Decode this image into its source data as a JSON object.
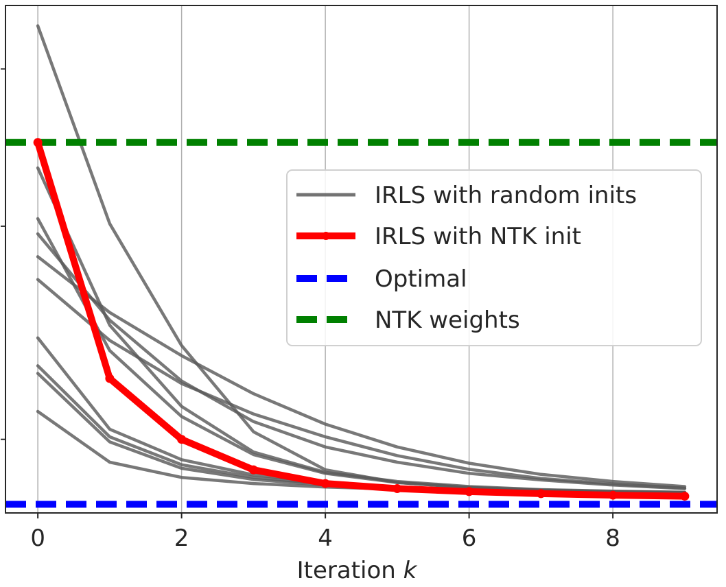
{
  "chart_data": {
    "type": "line",
    "title": "",
    "xlabel": "Iteration",
    "xlabel_var": "k",
    "ylabel": "",
    "xlim": [
      -0.45,
      9.45
    ],
    "ylim": [
      0,
      1
    ],
    "xticks": [
      0,
      2,
      4,
      6,
      8
    ],
    "xtick_labels": [
      "0",
      "2",
      "4",
      "6",
      "8"
    ],
    "yticks": [
      0.145,
      0.565,
      0.875
    ],
    "grid": "x",
    "legend_position": "center-right",
    "legend": [
      {
        "label": "IRLS with random inits",
        "style": "gray-solid"
      },
      {
        "label": "IRLS with NTK init",
        "style": "red-marker"
      },
      {
        "label": "Optimal",
        "style": "blue-dashed"
      },
      {
        "label": "NTK weights",
        "style": "green-dashed"
      }
    ],
    "x": [
      0,
      1,
      2,
      3,
      4,
      5,
      6,
      7,
      8,
      9
    ],
    "random_inits": [
      {
        "values": [
          0.96,
          0.57,
          0.33,
          0.16,
          0.085,
          0.06,
          0.05,
          0.045,
          0.042,
          0.04
        ]
      },
      {
        "values": [
          0.68,
          0.37,
          0.21,
          0.12,
          0.08,
          0.062,
          0.052,
          0.046,
          0.043,
          0.041
        ]
      },
      {
        "values": [
          0.55,
          0.38,
          0.26,
          0.18,
          0.13,
          0.1,
          0.078,
          0.065,
          0.055,
          0.048
        ]
      },
      {
        "values": [
          0.58,
          0.32,
          0.19,
          0.115,
          0.078,
          0.06,
          0.05,
          0.045,
          0.042,
          0.04
        ]
      },
      {
        "values": [
          0.505,
          0.395,
          0.31,
          0.235,
          0.175,
          0.13,
          0.098,
          0.076,
          0.062,
          0.052
        ]
      },
      {
        "values": [
          0.46,
          0.34,
          0.255,
          0.195,
          0.15,
          0.113,
          0.086,
          0.068,
          0.057,
          0.049
        ]
      },
      {
        "values": [
          0.345,
          0.165,
          0.105,
          0.075,
          0.06,
          0.051,
          0.046,
          0.043,
          0.041,
          0.04
        ]
      },
      {
        "values": [
          0.29,
          0.15,
          0.095,
          0.07,
          0.057,
          0.05,
          0.045,
          0.042,
          0.041,
          0.04
        ]
      },
      {
        "values": [
          0.275,
          0.14,
          0.088,
          0.066,
          0.055,
          0.048,
          0.044,
          0.042,
          0.04,
          0.039
        ]
      },
      {
        "values": [
          0.2,
          0.1,
          0.07,
          0.058,
          0.051,
          0.047,
          0.043,
          0.041,
          0.04,
          0.039
        ]
      }
    ],
    "ntk_init": [
      0.73,
      0.265,
      0.145,
      0.085,
      0.058,
      0.048,
      0.042,
      0.038,
      0.035,
      0.033
    ],
    "optimal": 0.017,
    "ntk_weights": 0.73,
    "colors": {
      "random": "#5a5a5a",
      "ntk_init": "#ff0000",
      "optimal": "#0000ff",
      "ntk_weights": "#008000",
      "grid": "#b0b0b0",
      "axes": "#262626"
    }
  }
}
